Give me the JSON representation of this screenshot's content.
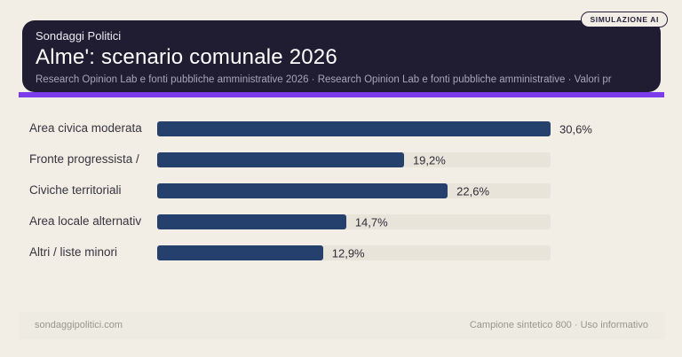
{
  "badge": {
    "label": "SIMULAZIONE AI"
  },
  "header": {
    "brand": "Sondaggi Politici",
    "title": "Alme': scenario comunale 2026",
    "subtitle": "Research Opinion Lab e fonti pubbliche amministrative 2026 · Research Opinion Lab e fonti pubbliche amministrative · Valori pr",
    "background": "#201d32",
    "accent_bar_color": "#7c3aed"
  },
  "chart_data": {
    "type": "bar",
    "orientation": "horizontal",
    "title": "Alme': scenario comunale 2026",
    "categories": [
      "Area civica moderata",
      "Fronte progressista /",
      "Civiche territoriali",
      "Area locale alternativ",
      "Altri / liste minori"
    ],
    "values": [
      30.6,
      19.2,
      22.6,
      14.7,
      12.9
    ],
    "value_labels": [
      "30,6%",
      "19,2%",
      "22,6%",
      "14,7%",
      "12,9%"
    ],
    "unit": "%",
    "xlim": [
      0,
      30.6
    ],
    "grid": false,
    "legend": false,
    "bar_color": "#25406d",
    "track_color": "#e8e4da"
  },
  "footer": {
    "left": "sondaggipolitici.com",
    "right": "Campione sintetico 800 · Uso informativo"
  },
  "page": {
    "background": "#f3eee5"
  }
}
